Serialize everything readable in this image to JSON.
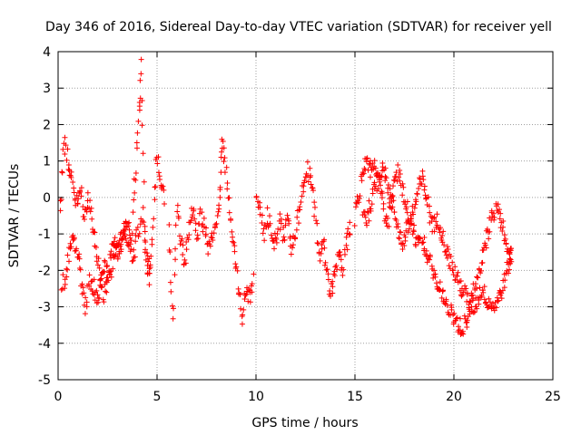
{
  "chart_data": {
    "type": "scatter",
    "title": "Day 346 of 2016, Sidereal Day-to-day VTEC variation (SDTVAR) for receiver yell",
    "xlabel": "GPS time / hours",
    "ylabel": "SDTVAR / TECUs",
    "xlim": [
      0,
      25
    ],
    "ylim": [
      -5,
      4
    ],
    "x_ticks": [
      0,
      5,
      10,
      15,
      20,
      25
    ],
    "y_ticks": [
      -5,
      -4,
      -3,
      -2,
      -1,
      0,
      1,
      2,
      3,
      4
    ],
    "grid": true,
    "marker": "+",
    "colors": {
      "series": "#ff0000",
      "grid": "#a0a0a0",
      "axes": "#000000"
    },
    "series": [
      {
        "name": "SDTVAR",
        "description_points": "approximate [hour, TECU] trace samples",
        "trace_segments": [
          [
            [
              0.1,
              -0.5
            ],
            [
              0.3,
              1.5
            ],
            [
              0.5,
              1.0
            ],
            [
              0.7,
              0.5
            ],
            [
              0.9,
              -0.2
            ],
            [
              1.1,
              0.3
            ],
            [
              1.3,
              -0.5
            ],
            [
              1.5,
              0.0
            ],
            [
              1.7,
              -0.6
            ],
            [
              1.9,
              -1.3
            ],
            [
              2.1,
              -2.2
            ],
            [
              2.3,
              -2.7
            ],
            [
              2.5,
              -2.2
            ],
            [
              2.7,
              -1.6
            ],
            [
              2.9,
              -1.1
            ],
            [
              3.1,
              -1.7
            ],
            [
              3.3,
              -0.8
            ],
            [
              3.5,
              -0.5
            ],
            [
              3.7,
              -1.2
            ],
            [
              3.9,
              0.6
            ],
            [
              4.1,
              2.2
            ],
            [
              4.2,
              3.6
            ],
            [
              4.4,
              -1.5
            ],
            [
              4.6,
              -2.3
            ],
            [
              4.8,
              -0.8
            ],
            [
              5.0,
              1.2
            ],
            [
              5.2,
              0.5
            ],
            [
              5.4,
              -0.3
            ]
          ],
          [
            [
              0.2,
              -2.5
            ],
            [
              0.4,
              -2.1
            ],
            [
              0.6,
              -1.3
            ],
            [
              0.8,
              -1.2
            ],
            [
              1.0,
              -1.6
            ],
            [
              1.2,
              -2.5
            ],
            [
              1.4,
              -3.0
            ],
            [
              1.6,
              -2.3
            ],
            [
              1.8,
              -2.5
            ],
            [
              2.0,
              -2.9
            ],
            [
              2.2,
              -2.3
            ],
            [
              2.4,
              -1.9
            ],
            [
              2.6,
              -2.2
            ],
            [
              2.8,
              -1.5
            ],
            [
              3.0,
              -1.3
            ],
            [
              3.2,
              -1.1
            ],
            [
              3.4,
              -0.9
            ],
            [
              3.6,
              -1.3
            ],
            [
              3.8,
              -1.6
            ],
            [
              4.0,
              -1.0
            ],
            [
              4.3,
              -0.5
            ],
            [
              4.5,
              -1.8
            ],
            [
              4.7,
              -2.0
            ]
          ],
          [
            [
              5.6,
              -0.8
            ],
            [
              5.8,
              -3.4
            ],
            [
              6.0,
              -0.2
            ],
            [
              6.2,
              -1.2
            ],
            [
              6.4,
              -1.9
            ],
            [
              6.6,
              -0.9
            ],
            [
              6.8,
              -0.3
            ],
            [
              7.0,
              -1.2
            ],
            [
              7.2,
              -0.5
            ],
            [
              7.4,
              -0.8
            ],
            [
              7.6,
              -1.4
            ],
            [
              7.8,
              -1.0
            ],
            [
              8.0,
              -0.6
            ],
            [
              8.2,
              0.2
            ],
            [
              8.3,
              1.6
            ],
            [
              8.5,
              0.6
            ],
            [
              8.7,
              -0.6
            ],
            [
              8.9,
              -1.2
            ],
            [
              9.1,
              -2.4
            ],
            [
              9.3,
              -3.3
            ],
            [
              9.5,
              -2.6
            ],
            [
              9.7,
              -2.8
            ],
            [
              9.9,
              -2.2
            ]
          ],
          [
            [
              10.0,
              0.2
            ],
            [
              10.2,
              -0.3
            ],
            [
              10.4,
              -1.0
            ],
            [
              10.6,
              -0.5
            ],
            [
              10.8,
              -0.9
            ],
            [
              11.0,
              -1.3
            ],
            [
              11.2,
              -0.7
            ],
            [
              11.4,
              -1.1
            ],
            [
              11.6,
              -0.6
            ],
            [
              11.8,
              -1.4
            ],
            [
              12.0,
              -0.9
            ],
            [
              12.2,
              -0.3
            ],
            [
              12.4,
              0.4
            ],
            [
              12.6,
              0.8
            ],
            [
              12.8,
              0.3
            ],
            [
              13.0,
              -0.4
            ],
            [
              13.2,
              -1.6
            ],
            [
              13.4,
              -1.2
            ],
            [
              13.6,
              -2.1
            ],
            [
              13.8,
              -2.6
            ],
            [
              14.0,
              -2.0
            ],
            [
              14.2,
              -1.5
            ],
            [
              14.4,
              -1.9
            ],
            [
              14.6,
              -1.2
            ],
            [
              14.8,
              -0.8
            ]
          ],
          [
            [
              15.0,
              -0.6
            ],
            [
              15.2,
              0.1
            ],
            [
              15.4,
              0.6
            ],
            [
              15.6,
              1.0
            ],
            [
              15.8,
              0.8
            ],
            [
              16.0,
              0.9
            ],
            [
              16.2,
              0.4
            ],
            [
              16.4,
              -0.2
            ],
            [
              16.6,
              -0.8
            ],
            [
              16.8,
              -0.3
            ],
            [
              17.0,
              0.4
            ],
            [
              17.2,
              0.7
            ],
            [
              17.4,
              0.2
            ],
            [
              17.6,
              -0.2
            ],
            [
              17.8,
              -0.7
            ],
            [
              18.0,
              -1.0
            ],
            [
              18.2,
              -1.3
            ],
            [
              18.4,
              -1.1
            ],
            [
              18.6,
              -1.5
            ],
            [
              18.8,
              -1.8
            ],
            [
              19.0,
              -2.1
            ],
            [
              19.2,
              -2.4
            ],
            [
              19.4,
              -2.6
            ],
            [
              19.6,
              -2.9
            ],
            [
              19.8,
              -3.1
            ],
            [
              20.0,
              -3.3
            ],
            [
              20.2,
              -3.5
            ],
            [
              20.4,
              -3.6
            ],
            [
              20.6,
              -3.4
            ],
            [
              20.8,
              -3.0
            ],
            [
              21.0,
              -2.6
            ],
            [
              21.2,
              -2.3
            ],
            [
              21.4,
              -1.8
            ],
            [
              21.6,
              -1.3
            ],
            [
              21.8,
              -0.8
            ],
            [
              22.0,
              -0.5
            ],
            [
              22.2,
              -0.2
            ],
            [
              22.4,
              -0.7
            ],
            [
              22.6,
              -1.3
            ],
            [
              22.8,
              -1.6
            ],
            [
              22.9,
              -1.4
            ]
          ],
          [
            [
              15.4,
              -0.3
            ],
            [
              15.6,
              -0.6
            ],
            [
              15.8,
              -0.2
            ],
            [
              16.0,
              0.2
            ],
            [
              16.2,
              0.6
            ],
            [
              16.4,
              0.9
            ],
            [
              16.6,
              0.5
            ],
            [
              16.8,
              0.0
            ],
            [
              17.0,
              -0.4
            ],
            [
              17.2,
              -0.9
            ],
            [
              17.4,
              -1.3
            ],
            [
              17.6,
              -1.0
            ],
            [
              17.8,
              -0.6
            ],
            [
              18.0,
              -0.3
            ],
            [
              18.2,
              0.2
            ],
            [
              18.4,
              0.5
            ],
            [
              18.6,
              0.1
            ],
            [
              18.8,
              -0.5
            ],
            [
              19.0,
              -0.8
            ],
            [
              19.2,
              -0.6
            ],
            [
              19.4,
              -1.0
            ],
            [
              19.6,
              -1.4
            ],
            [
              19.8,
              -1.7
            ],
            [
              20.0,
              -2.0
            ],
            [
              20.2,
              -2.3
            ],
            [
              20.4,
              -2.5
            ],
            [
              20.6,
              -2.7
            ],
            [
              20.8,
              -2.9
            ],
            [
              21.0,
              -3.0
            ],
            [
              21.2,
              -2.8
            ],
            [
              21.4,
              -2.5
            ],
            [
              21.6,
              -2.7
            ],
            [
              21.8,
              -2.9
            ],
            [
              22.0,
              -3.0
            ],
            [
              22.2,
              -2.8
            ],
            [
              22.4,
              -2.6
            ],
            [
              22.6,
              -2.2
            ],
            [
              22.8,
              -1.8
            ],
            [
              22.9,
              -1.6
            ]
          ]
        ]
      }
    ]
  }
}
